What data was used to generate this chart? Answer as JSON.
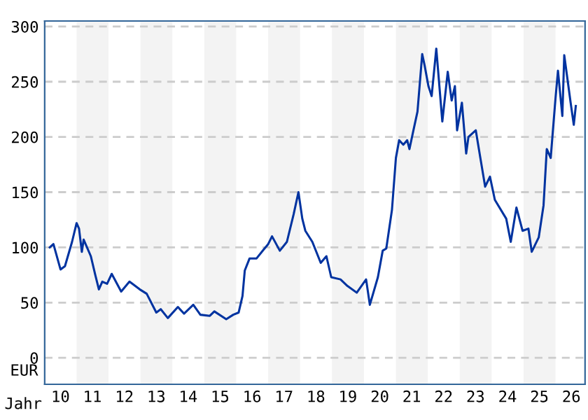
{
  "chart_data": {
    "type": "line",
    "xlabel": "Jahr",
    "ylabel": "EUR",
    "x": [
      "2010-02-28",
      "2010-04-11",
      "2010-07-01",
      "2010-08-21",
      "2010-11-10",
      "2011-01-01",
      "2011-01-29",
      "2011-03-02",
      "2011-03-23",
      "2011-06-13",
      "2011-08-03",
      "2011-09-13",
      "2011-10-22",
      "2011-12-16",
      "2012-02-07",
      "2012-05-25",
      "2012-08-28",
      "2012-12-23",
      "2013-03-13",
      "2013-07-01",
      "2013-08-21",
      "2013-11-10",
      "2014-03-05",
      "2014-05-14",
      "2014-08-28",
      "2014-11-17",
      "2015-03-05",
      "2015-04-26",
      "2015-09-09",
      "2015-11-28",
      "2016-01-29",
      "2016-03-13",
      "2016-04-08",
      "2016-06-02",
      "2016-08-21",
      "2016-11-10",
      "2017-01-01",
      "2017-02-14",
      "2017-05-14",
      "2017-08-03",
      "2017-10-19",
      "2017-12-13",
      "2018-01-26",
      "2018-03-02",
      "2018-05-21",
      "2018-08-25",
      "2018-10-29",
      "2018-12-23",
      "2019-04-08",
      "2019-06-27",
      "2019-10-11",
      "2020-01-26",
      "2020-03-09",
      "2020-06-09",
      "2020-08-03",
      "2020-09-13",
      "2020-11-17",
      "2021-01-01",
      "2021-02-07",
      "2021-03-27",
      "2021-05-10",
      "2021-06-05",
      "2021-07-15",
      "2021-09-05",
      "2021-10-29",
      "2021-11-25",
      "2022-01-08",
      "2022-02-14",
      "2022-04-08",
      "2022-06-16",
      "2022-08-17",
      "2022-10-01",
      "2022-11-07",
      "2022-12-02",
      "2023-01-26",
      "2023-03-16",
      "2023-04-11",
      "2023-07-04",
      "2023-08-25",
      "2023-10-19",
      "2023-12-13",
      "2024-02-07",
      "2024-06-16",
      "2024-08-07",
      "2024-10-11",
      "2024-12-20",
      "2025-02-25",
      "2025-04-04",
      "2025-06-23",
      "2025-08-17",
      "2025-09-23",
      "2025-11-07",
      "2026-01-01",
      "2026-01-29",
      "2026-03-20",
      "2026-04-11",
      "2026-06-23",
      "2026-07-29",
      "2026-08-21"
    ],
    "series": [
      {
        "color": "#0033a0",
        "values": [
          100,
          103,
          80,
          83,
          105,
          122,
          117,
          96,
          107,
          92,
          75,
          62,
          69,
          67,
          76,
          60,
          69,
          62,
          58,
          41,
          44,
          36,
          46,
          40,
          48,
          39,
          38,
          42,
          35,
          39,
          41,
          56,
          79,
          90,
          90,
          98,
          103,
          110,
          97,
          105,
          130,
          150,
          126,
          115,
          105,
          86,
          92,
          73,
          71,
          65,
          59,
          71,
          48,
          73,
          97,
          99,
          134,
          181,
          197,
          193,
          197,
          189,
          204,
          223,
          275,
          265,
          246,
          237,
          280,
          214,
          259,
          233,
          246,
          206,
          231,
          185,
          200,
          206,
          181,
          155,
          164,
          143,
          126,
          105,
          136,
          115,
          117,
          96,
          109,
          138,
          189,
          181,
          235,
          260,
          219,
          274,
          231,
          211,
          228
        ]
      }
    ],
    "xlim": [
      "2010-01-01",
      "2026-12-05"
    ],
    "ylim": [
      -24,
      305
    ],
    "xticks": [
      {
        "value": "2010-07-01",
        "label": "10"
      },
      {
        "value": "2011-07-01",
        "label": "11"
      },
      {
        "value": "2012-07-01",
        "label": "12"
      },
      {
        "value": "2013-07-01",
        "label": "13"
      },
      {
        "value": "2014-07-01",
        "label": "14"
      },
      {
        "value": "2015-07-01",
        "label": "15"
      },
      {
        "value": "2016-07-01",
        "label": "16"
      },
      {
        "value": "2017-07-01",
        "label": "17"
      },
      {
        "value": "2018-07-01",
        "label": "18"
      },
      {
        "value": "2019-07-01",
        "label": "19"
      },
      {
        "value": "2020-07-01",
        "label": "20"
      },
      {
        "value": "2021-07-01",
        "label": "21"
      },
      {
        "value": "2022-07-01",
        "label": "22"
      },
      {
        "value": "2023-07-01",
        "label": "23"
      },
      {
        "value": "2024-07-01",
        "label": "24"
      },
      {
        "value": "2025-07-01",
        "label": "25"
      },
      {
        "value": "2026-07-01",
        "label": "26"
      }
    ],
    "yticks": [
      0,
      50,
      100,
      150,
      200,
      250,
      300
    ],
    "grid": "y",
    "marker": "none",
    "line_style": "solid",
    "bands": [
      {
        "axis": "x",
        "from": "2011-01-01",
        "to": "2012-01-01",
        "color": "#f3f3f3"
      },
      {
        "axis": "x",
        "from": "2013-01-01",
        "to": "2014-01-01",
        "color": "#f3f3f3"
      },
      {
        "axis": "x",
        "from": "2015-01-01",
        "to": "2016-01-01",
        "color": "#f3f3f3"
      },
      {
        "axis": "x",
        "from": "2017-01-01",
        "to": "2018-01-01",
        "color": "#f3f3f3"
      },
      {
        "axis": "x",
        "from": "2019-01-01",
        "to": "2020-01-01",
        "color": "#f3f3f3"
      },
      {
        "axis": "x",
        "from": "2021-01-01",
        "to": "2022-01-01",
        "color": "#f3f3f3"
      },
      {
        "axis": "x",
        "from": "2023-01-01",
        "to": "2024-01-01",
        "color": "#f3f3f3"
      },
      {
        "axis": "x",
        "from": "2025-01-01",
        "to": "2026-01-01",
        "color": "#f3f3f3"
      }
    ]
  }
}
